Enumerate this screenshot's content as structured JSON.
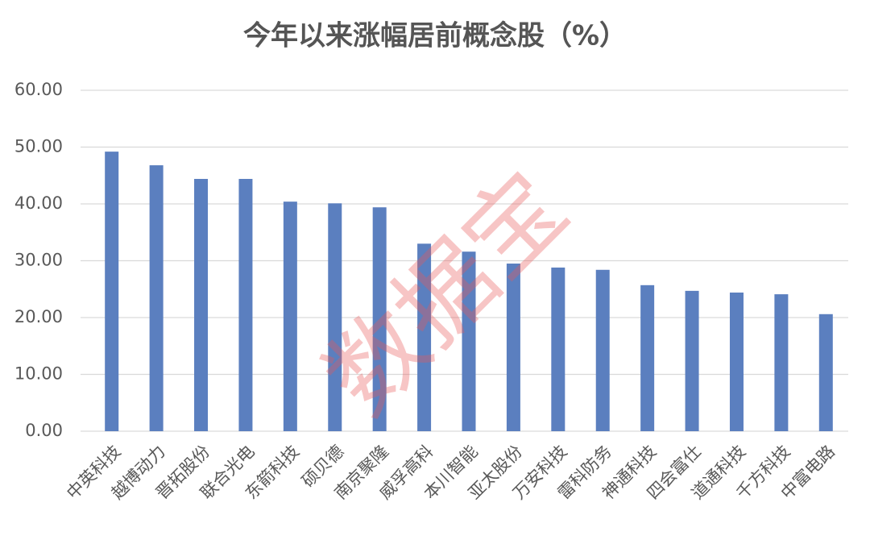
{
  "chart_data": {
    "type": "bar",
    "title": "今年以来涨幅居前概念股（%）",
    "watermark": "数据宝",
    "categories": [
      "中英科技",
      "越博动力",
      "晋拓股份",
      "联合光电",
      "东箭科技",
      "硕贝德",
      "南京聚隆",
      "威孚高科",
      "本川智能",
      "亚太股份",
      "万安科技",
      "雷科防务",
      "神通科技",
      "四会富仕",
      "道通科技",
      "千方科技",
      "中富电路"
    ],
    "values": [
      49.2,
      46.8,
      44.4,
      44.4,
      40.4,
      40.1,
      39.4,
      33.0,
      31.6,
      29.5,
      28.8,
      28.4,
      25.7,
      24.7,
      24.4,
      24.1,
      20.6
    ],
    "color": "#5b7fbf",
    "ylim": [
      0,
      60
    ],
    "yticks": [
      {
        "value": 0,
        "label": "0.00"
      },
      {
        "value": 10,
        "label": "10.00"
      },
      {
        "value": 20,
        "label": "20.00"
      },
      {
        "value": 30,
        "label": "30.00"
      },
      {
        "value": 40,
        "label": "40.00"
      },
      {
        "value": 50,
        "label": "50.00"
      },
      {
        "value": 60,
        "label": "60.00"
      }
    ],
    "grid": true
  }
}
